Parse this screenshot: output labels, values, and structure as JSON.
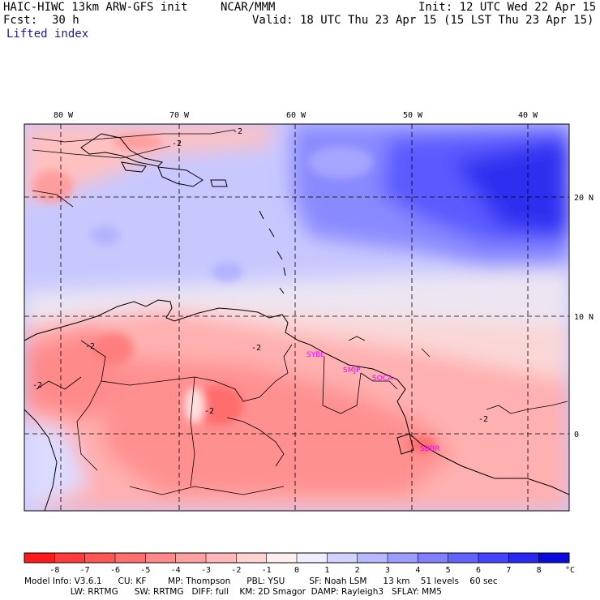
{
  "header": {
    "model": "HAIC-HIWC 13km ARW-GFS init",
    "org": "NCAR/MMM",
    "init": "Init: 12 UTC Wed 22 Apr 15",
    "fcst_label": "Fcst:",
    "fcst_value": "30 h",
    "valid": "Valid: 18 UTC Thu 23 Apr 15 (15 LST Thu 23 Apr 15)",
    "field": "Lifted index"
  },
  "map": {
    "lon_labels": [
      "80 W",
      "70 W",
      "60 W",
      "50 W",
      "40 W"
    ],
    "lat_labels": [
      "20 N",
      "10 N",
      "0"
    ],
    "contour_labels": [
      "-2",
      "-2",
      "-2",
      "-2",
      "-2",
      "-2",
      "-2"
    ],
    "stations": [
      "SYBL",
      "SMJP",
      "SOCA",
      "SBBR"
    ]
  },
  "colorbar": {
    "ticks": [
      "-8",
      "-7",
      "-6",
      "-5",
      "-4",
      "-3",
      "-2",
      "-1",
      "0",
      "1",
      "2",
      "3",
      "4",
      "5",
      "6",
      "7",
      "8"
    ],
    "unit": "°C",
    "colors": [
      "#ff1a1a",
      "#ff3a3a",
      "#ff5555",
      "#ff6f6f",
      "#ff8888",
      "#ffa0a0",
      "#ffb8b8",
      "#ffd2d2",
      "#ffeeee",
      "#eeeeff",
      "#d2d2ff",
      "#b8b8ff",
      "#9c9cff",
      "#7f7fff",
      "#6262ff",
      "#4444ff",
      "#2828f0",
      "#0a0ae0"
    ]
  },
  "footer": {
    "line1": "Model Info: V3.6.1      CU: KF        MP: Thompson      PBL: YSU         SF: Noah LSM      13 km    51 levels    60 sec",
    "line2": "                 LW: RRTMG      SW: RRTMG   DIFF: full    KM: 2D Smagor  DAMP: Rayleigh3   SFLAY: MM5"
  }
}
